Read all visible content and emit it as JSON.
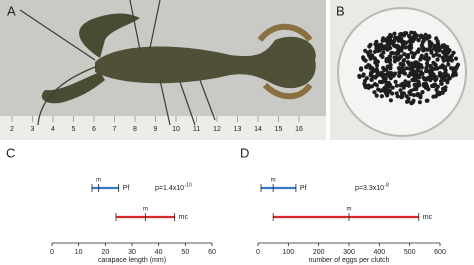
{
  "photo_a": {
    "label": "A",
    "ruler": [
      "2",
      "3",
      "4",
      "5",
      "6",
      "7",
      "8",
      "9",
      "10",
      "11",
      "12",
      "13",
      "14",
      "15",
      "16"
    ]
  },
  "photo_b": {
    "label": "B"
  },
  "chart_data": [
    {
      "type": "range",
      "panel": "C",
      "xlabel": "carapace length (mm)",
      "xlim": [
        0,
        60
      ],
      "xticks": [
        0,
        10,
        20,
        30,
        40,
        50,
        60
      ],
      "median_label": "m",
      "annotation": "p=1.4x10",
      "annotation_exponent": "-10",
      "series": [
        {
          "name": "Pf",
          "color": "#3a78c9",
          "values": [
            15,
            17.5,
            25
          ]
        },
        {
          "name": "mc",
          "color": "#d8282a",
          "values": [
            24,
            35,
            46
          ]
        }
      ]
    },
    {
      "type": "range",
      "panel": "D",
      "xlabel": "number of eggs per clutch",
      "xlim": [
        0,
        600
      ],
      "xticks": [
        0,
        100,
        200,
        300,
        400,
        500,
        600
      ],
      "median_label": "m",
      "annotation": "p=3.3x10",
      "annotation_exponent": "-8",
      "series": [
        {
          "name": "Pf",
          "color": "#3a78c9",
          "values": [
            10,
            50,
            125
          ]
        },
        {
          "name": "mc",
          "color": "#d8282a",
          "values": [
            50,
            300,
            530
          ]
        }
      ]
    }
  ]
}
